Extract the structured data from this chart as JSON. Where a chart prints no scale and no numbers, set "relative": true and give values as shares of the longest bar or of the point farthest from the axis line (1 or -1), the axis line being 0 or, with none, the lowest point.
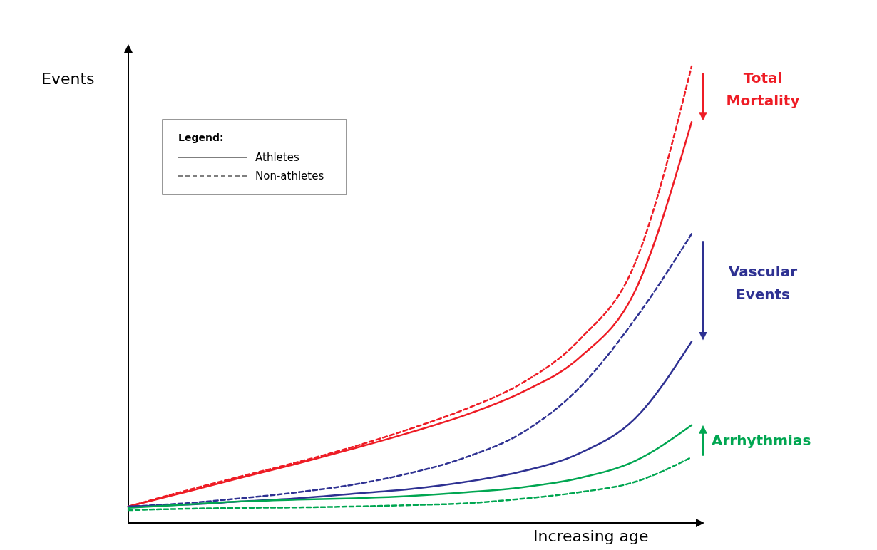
{
  "chart_data": {
    "type": "line",
    "relative": true,
    "xlabel": "Increasing age",
    "ylabel": "Events",
    "categories": [
      null,
      null,
      null,
      null,
      null,
      null,
      null,
      null,
      null,
      null,
      null
    ],
    "series": [
      {
        "color": "#ee1c25",
        "line_style": "dashed",
        "values": [
          0.036,
          0.07,
          0.102,
          0.133,
          0.167,
          0.206,
          0.25,
          0.307,
          0.4,
          0.57,
          1.0
        ]
      },
      {
        "color": "#ee1c25",
        "line_style": "solid",
        "values": [
          0.036,
          0.067,
          0.099,
          0.13,
          0.163,
          0.198,
          0.237,
          0.287,
          0.361,
          0.509,
          0.878
        ]
      },
      {
        "color": "#2e3192",
        "line_style": "dashed",
        "values": [
          0.036,
          0.043,
          0.054,
          0.067,
          0.084,
          0.109,
          0.144,
          0.198,
          0.295,
          0.447,
          0.633
        ]
      },
      {
        "color": "#2e3192",
        "line_style": "solid",
        "values": [
          0.036,
          0.04,
          0.047,
          0.054,
          0.064,
          0.074,
          0.09,
          0.113,
          0.152,
          0.229,
          0.397
        ]
      },
      {
        "color": "#00a651",
        "line_style": "solid",
        "values": [
          0.033,
          0.04,
          0.047,
          0.051,
          0.054,
          0.059,
          0.067,
          0.078,
          0.098,
          0.136,
          0.214
        ]
      },
      {
        "color": "#00a651",
        "line_style": "dashed",
        "values": [
          0.028,
          0.031,
          0.033,
          0.034,
          0.036,
          0.039,
          0.043,
          0.053,
          0.067,
          0.09,
          0.144
        ]
      }
    ],
    "annotations": [
      "Total Mortality",
      "Vascular Events",
      "Arrhythmias",
      "Legend:",
      "Athletes",
      "Non-athletes"
    ]
  }
}
